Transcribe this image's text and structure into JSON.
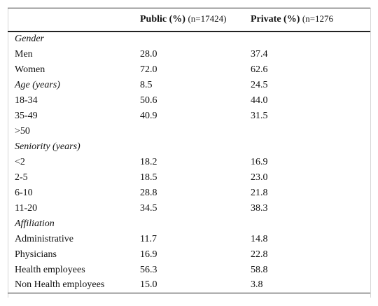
{
  "table": {
    "columns": [
      {
        "label": "",
        "sub": ""
      },
      {
        "label": "Public (%)",
        "sub": "(n=17424)"
      },
      {
        "label": "Private (%)",
        "sub": "(n=1276"
      }
    ],
    "rows": [
      {
        "label": "Gender",
        "section": true,
        "public": "",
        "private": ""
      },
      {
        "label": "Men",
        "section": false,
        "public": "28.0",
        "private": "37.4"
      },
      {
        "label": "Women",
        "section": false,
        "public": "72.0",
        "private": "62.6"
      },
      {
        "label": "Age (years)",
        "section": true,
        "public": "8.5",
        "private": "24.5"
      },
      {
        "label": "18-34",
        "section": false,
        "public": "50.6",
        "private": "44.0"
      },
      {
        "label": "35-49",
        "section": false,
        "public": "40.9",
        "private": "31.5"
      },
      {
        "label": ">50",
        "section": false,
        "public": "",
        "private": ""
      },
      {
        "label": "Seniority (years)",
        "section": true,
        "public": "",
        "private": ""
      },
      {
        "label": "<2",
        "section": false,
        "public": "18.2",
        "private": "16.9"
      },
      {
        "label": "2-5",
        "section": false,
        "public": "18.5",
        "private": "23.0"
      },
      {
        "label": "6-10",
        "section": false,
        "public": "28.8",
        "private": "21.8"
      },
      {
        "label": "11-20",
        "section": false,
        "public": "34.5",
        "private": "38.3"
      },
      {
        "label": "Affiliation",
        "section": true,
        "public": "",
        "private": ""
      },
      {
        "label": "Administrative",
        "section": false,
        "public": "11.7",
        "private": "14.8"
      },
      {
        "label": "Physicians",
        "section": false,
        "public": "16.9",
        "private": "22.8"
      },
      {
        "label": "Health employees",
        "section": false,
        "public": "56.3",
        "private": "58.8"
      },
      {
        "label": "Non Health employees",
        "section": false,
        "public": "15.0",
        "private": "3.8"
      }
    ]
  }
}
